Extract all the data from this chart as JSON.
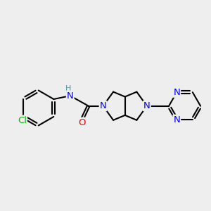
{
  "background_color": "#eeeeee",
  "bond_color": "#000000",
  "bond_width": 1.5,
  "atom_colors": {
    "N": "#0000ee",
    "O": "#ee0000",
    "Cl": "#00bb00",
    "H": "#4a9999",
    "C": "#000000"
  },
  "font_size": 9.5
}
